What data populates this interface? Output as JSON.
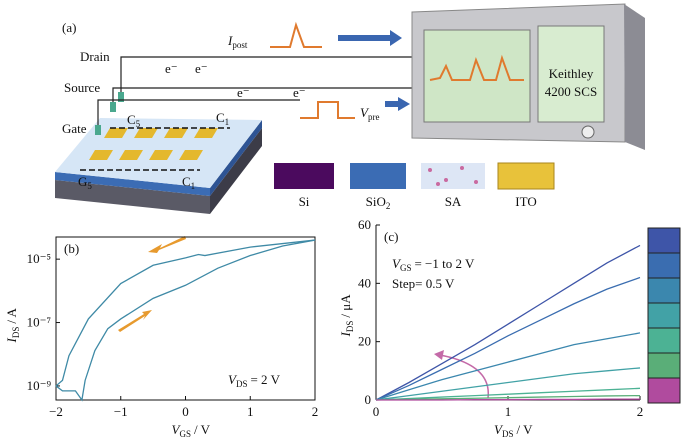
{
  "panel_a": {
    "label": "(a)",
    "terminals": [
      "Drain",
      "Source",
      "Gate"
    ],
    "electrons": [
      "e⁻",
      "e⁻",
      "e⁻",
      "e⁻"
    ],
    "i_post": {
      "main": "I",
      "sub": "post"
    },
    "v_pre": {
      "main": "V",
      "sub": "pre"
    },
    "electrodes": [
      {
        "main": "C",
        "sub": "5"
      },
      {
        "main": "C",
        "sub": "1"
      },
      {
        "main": "G",
        "sub": "5"
      },
      {
        "main": "C",
        "sub": "1"
      }
    ],
    "instrument": [
      "Keithley",
      "4200 SCS"
    ],
    "legend": [
      {
        "main": "Si"
      },
      {
        "main": "SiO",
        "sub": "2"
      },
      {
        "main": "SA"
      },
      {
        "main": "ITO"
      }
    ]
  },
  "chart_data": [
    {
      "type": "line",
      "label": "(b)",
      "yscale": "log",
      "xlabel": {
        "main": "V",
        "sub": "GS",
        "rest": "/ V"
      },
      "ylabel": {
        "main": "I",
        "sub": "DS",
        "rest": "/ A"
      },
      "annotation": [
        {
          "main": "V",
          "sub": "DS",
          "rest": "= 2 V"
        }
      ],
      "xlim": [
        -2,
        2
      ],
      "ylim": [
        3.6e-10,
        5e-05
      ],
      "xticks": [
        {
          "value": -2,
          "label": "−2"
        },
        {
          "value": -1,
          "label": "−1"
        },
        0,
        1,
        2
      ],
      "yticks": [
        {
          "value": 1e-09,
          "label": "10⁻⁹"
        },
        {
          "value": 1e-07,
          "label": "10⁻⁷"
        },
        {
          "value": 1e-05,
          "label": "10⁻⁵"
        }
      ],
      "frame": "box",
      "series": [
        {
          "color": "#3f8aa6",
          "x": [
            -2,
            -1.9,
            -1.8,
            -1.5,
            -1,
            -0.5,
            0,
            0.2,
            0.3,
            1,
            2
          ],
          "values": [
            1e-09,
            1.5e-09,
            9e-09,
            1.3e-07,
            1.7e-06,
            6.4e-06,
            1.1e-05,
            1.4e-05,
            1.3e-05,
            2.4e-05,
            4e-05
          ]
        },
        {
          "color": "#3f8aa6",
          "x": [
            -2,
            -1.9,
            -1.7,
            -1.6,
            -1.55,
            -1.4,
            -1.2,
            -1,
            -0.5,
            0,
            0.5,
            1,
            1.5,
            2
          ],
          "values": [
            1e-09,
            7e-10,
            7e-10,
            3.6e-10,
            1.5e-09,
            1.3e-08,
            6.4e-08,
            1.3e-07,
            5.8e-07,
            1.5e-06,
            5.2e-06,
            1.3e-05,
            2.6e-05,
            4e-05
          ]
        }
      ]
    },
    {
      "type": "line",
      "label": "(c)",
      "xlabel": {
        "main": "V",
        "sub": "DS",
        "rest": "/ V"
      },
      "ylabel": {
        "main": "I",
        "sub": "DS",
        "rest": "/ μA"
      },
      "annotation": [
        {
          "main": "V",
          "sub": "GS",
          "rest": "= −1 to 2 V"
        },
        {
          "main": "Step= 0.5 V"
        }
      ],
      "xlim": [
        0,
        2
      ],
      "ylim": [
        0,
        60
      ],
      "xticks": [
        0,
        1,
        2
      ],
      "yticks": [
        0,
        20,
        40,
        60
      ],
      "frame": "axes",
      "x": [
        0,
        0.25,
        0.5,
        0.75,
        1,
        1.25,
        1.5,
        1.75,
        2
      ],
      "series": [
        {
          "color": "#3e55a8",
          "values": [
            0,
            6,
            12.5,
            19,
            26,
            33,
            40,
            47,
            53
          ]
        },
        {
          "color": "#3a6db0",
          "values": [
            0,
            5,
            10.5,
            16,
            22,
            27.5,
            33,
            38,
            42
          ]
        },
        {
          "color": "#3b87ae",
          "values": [
            0,
            3.5,
            7,
            10,
            13,
            16,
            19,
            21,
            23
          ]
        },
        {
          "color": "#42a2a6",
          "values": [
            0,
            1.5,
            3,
            4.5,
            6,
            7.5,
            9,
            10,
            11
          ]
        },
        {
          "color": "#4cb294",
          "values": [
            0,
            0.5,
            1,
            1.5,
            2,
            2.5,
            3,
            3.5,
            4
          ]
        },
        {
          "color": "#5aae78",
          "values": [
            0,
            0.2,
            0.4,
            0.6,
            0.8,
            1,
            1.2,
            1.4,
            1.5
          ]
        },
        {
          "color": "#b04b9e",
          "values": [
            0,
            0,
            0,
            0.1,
            0.1,
            0.2,
            0.2,
            0.3,
            0.3
          ]
        }
      ]
    }
  ]
}
